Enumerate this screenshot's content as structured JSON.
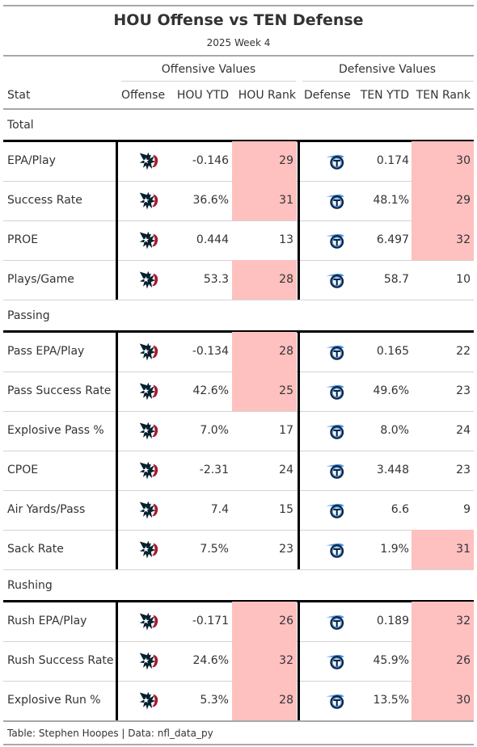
{
  "title": "HOU Offense vs TEN Defense",
  "subtitle": "2025 Week 4",
  "spanners": {
    "offense": "Offensive Values",
    "defense": "Defensive Values"
  },
  "columns": {
    "stat": "Stat",
    "offense": "Offense",
    "hou_ytd": "HOU YTD",
    "hou_rank": "HOU Rank",
    "defense": "Defense",
    "ten_ytd": "TEN YTD",
    "ten_rank": "TEN Rank"
  },
  "icons": {
    "offense_logo": "houston-texans-logo-icon",
    "defense_logo": "tennessee-titans-logo-icon"
  },
  "colors": {
    "highlight": "#ffc0c0",
    "texans_navy": "#03202f",
    "texans_red": "#a71930",
    "titans_navy": "#0c2340",
    "titans_blue": "#4b92db"
  },
  "groups": [
    {
      "name": "Total",
      "rows": [
        {
          "stat": "EPA/Play",
          "hou_ytd": "-0.146",
          "hou_rank": "29",
          "hou_hl": true,
          "ten_ytd": "0.174",
          "ten_rank": "30",
          "ten_hl": true
        },
        {
          "stat": "Success Rate",
          "hou_ytd": "36.6%",
          "hou_rank": "31",
          "hou_hl": true,
          "ten_ytd": "48.1%",
          "ten_rank": "29",
          "ten_hl": true
        },
        {
          "stat": "PROE",
          "hou_ytd": "0.444",
          "hou_rank": "13",
          "hou_hl": false,
          "ten_ytd": "6.497",
          "ten_rank": "32",
          "ten_hl": true
        },
        {
          "stat": "Plays/Game",
          "hou_ytd": "53.3",
          "hou_rank": "28",
          "hou_hl": true,
          "ten_ytd": "58.7",
          "ten_rank": "10",
          "ten_hl": false
        }
      ]
    },
    {
      "name": "Passing",
      "rows": [
        {
          "stat": "Pass EPA/Play",
          "hou_ytd": "-0.134",
          "hou_rank": "28",
          "hou_hl": true,
          "ten_ytd": "0.165",
          "ten_rank": "22",
          "ten_hl": false
        },
        {
          "stat": "Pass Success Rate",
          "hou_ytd": "42.6%",
          "hou_rank": "25",
          "hou_hl": true,
          "ten_ytd": "49.6%",
          "ten_rank": "23",
          "ten_hl": false
        },
        {
          "stat": "Explosive Pass %",
          "hou_ytd": "7.0%",
          "hou_rank": "17",
          "hou_hl": false,
          "ten_ytd": "8.0%",
          "ten_rank": "24",
          "ten_hl": false
        },
        {
          "stat": "CPOE",
          "hou_ytd": "-2.31",
          "hou_rank": "24",
          "hou_hl": false,
          "ten_ytd": "3.448",
          "ten_rank": "23",
          "ten_hl": false
        },
        {
          "stat": "Air Yards/Pass",
          "hou_ytd": "7.4",
          "hou_rank": "15",
          "hou_hl": false,
          "ten_ytd": "6.6",
          "ten_rank": "9",
          "ten_hl": false
        },
        {
          "stat": "Sack Rate",
          "hou_ytd": "7.5%",
          "hou_rank": "23",
          "hou_hl": false,
          "ten_ytd": "1.9%",
          "ten_rank": "31",
          "ten_hl": true
        }
      ]
    },
    {
      "name": "Rushing",
      "rows": [
        {
          "stat": "Rush EPA/Play",
          "hou_ytd": "-0.171",
          "hou_rank": "26",
          "hou_hl": true,
          "ten_ytd": "0.189",
          "ten_rank": "32",
          "ten_hl": true
        },
        {
          "stat": "Rush Success Rate",
          "hou_ytd": "24.6%",
          "hou_rank": "32",
          "hou_hl": true,
          "ten_ytd": "45.9%",
          "ten_rank": "26",
          "ten_hl": true
        },
        {
          "stat": "Explosive Run %",
          "hou_ytd": "5.3%",
          "hou_rank": "28",
          "hou_hl": true,
          "ten_ytd": "13.5%",
          "ten_rank": "30",
          "ten_hl": true
        }
      ]
    }
  ],
  "footer": "Table: Stephen Hoopes | Data: nfl_data_py"
}
